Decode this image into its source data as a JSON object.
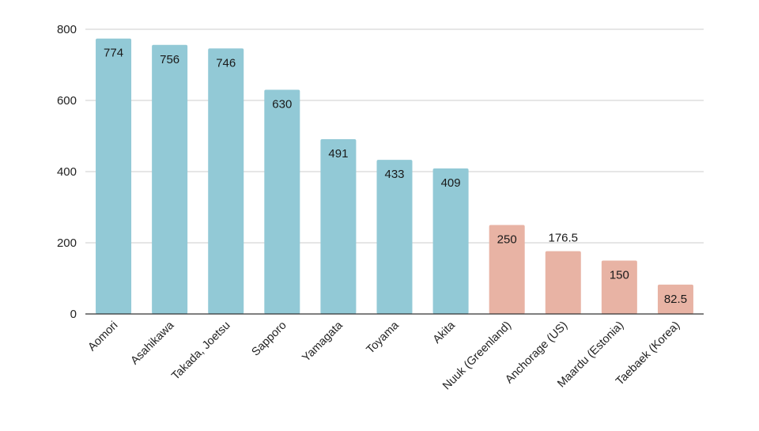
{
  "chart_data": {
    "type": "bar",
    "title": "",
    "xlabel": "",
    "ylabel": "",
    "ylim": [
      0,
      800
    ],
    "yticks": [
      0,
      200,
      400,
      600,
      800
    ],
    "grid": true,
    "categories": [
      "Aomori",
      "Asahikawa",
      "Takada, Joetsu",
      "Sapporo",
      "Yamagata",
      "Toyama",
      "Akita",
      "Nuuk (Greenland)",
      "Anchorage (US)",
      "Maardu (Estonia)",
      "Taebaek (Korea)"
    ],
    "values": [
      774,
      756,
      746,
      630,
      491,
      433,
      409,
      250,
      176.5,
      150,
      82.5
    ],
    "value_labels": [
      "774",
      "756",
      "746",
      "630",
      "491",
      "433",
      "409",
      "250",
      "176.5",
      "150",
      "82.5"
    ],
    "bar_colors": [
      "#92c9d6",
      "#92c9d6",
      "#92c9d6",
      "#92c9d6",
      "#92c9d6",
      "#92c9d6",
      "#92c9d6",
      "#e8b3a4",
      "#e8b3a4",
      "#e8b3a4",
      "#e8b3a4"
    ],
    "label_colors": [
      "#1a1a1a",
      "#1a1a1a",
      "#1a1a1a",
      "#1a1a1a",
      "#1a1a1a",
      "#1a1a1a",
      "#1a1a1a",
      "#1a1a1a",
      "#e8b3a4",
      "#1a1a1a",
      "#1a1a1a"
    ],
    "label_position": [
      "inside",
      "inside",
      "inside",
      "inside",
      "inside",
      "inside",
      "inside",
      "inside",
      "above",
      "inside",
      "inside"
    ]
  }
}
